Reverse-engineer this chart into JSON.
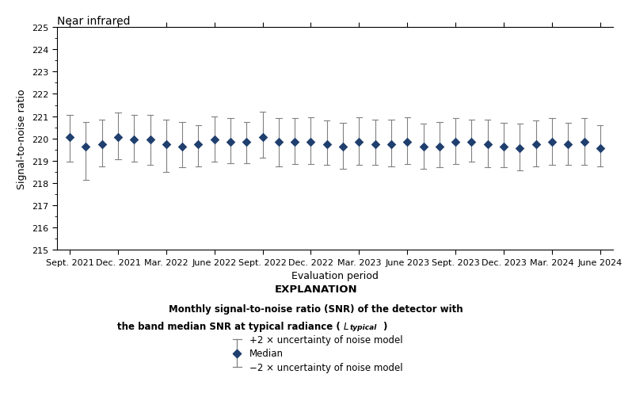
{
  "title": "Near infrared",
  "xlabel": "Evaluation period",
  "ylabel": "Signal-to-noise ratio",
  "ylim": [
    215,
    225
  ],
  "yticks": [
    215,
    216,
    217,
    218,
    219,
    220,
    221,
    222,
    223,
    224,
    225
  ],
  "x_labels": [
    "Sept. 2021",
    "Dec. 2021",
    "Mar. 2022",
    "June 2022",
    "Sept. 2022",
    "Dec. 2022",
    "Mar. 2023",
    "June 2023",
    "Sept. 2023",
    "Dec. 2023",
    "Mar. 2024",
    "June 2024"
  ],
  "medians": [
    220.05,
    219.65,
    219.75,
    220.05,
    219.95,
    219.95,
    219.75,
    219.65,
    219.75,
    219.95,
    219.85,
    219.85,
    220.05,
    219.85,
    219.85,
    219.85,
    219.75,
    219.65,
    219.85,
    219.75,
    219.75,
    219.85,
    219.65,
    219.65,
    219.85,
    219.85,
    219.75,
    219.65,
    219.55,
    219.75,
    219.85,
    219.75,
    219.85,
    219.55
  ],
  "upper_errors": [
    1.0,
    1.1,
    1.1,
    1.1,
    1.1,
    1.1,
    1.1,
    1.1,
    0.85,
    1.05,
    1.05,
    0.9,
    1.15,
    1.05,
    1.05,
    1.1,
    1.05,
    1.05,
    1.1,
    1.1,
    1.1,
    1.1,
    1.0,
    1.1,
    1.05,
    1.0,
    1.1,
    1.05,
    1.1,
    1.05,
    1.05,
    0.95,
    1.05,
    1.05
  ],
  "lower_errors": [
    1.1,
    1.5,
    1.0,
    1.0,
    1.0,
    1.15,
    1.25,
    0.95,
    1.0,
    1.0,
    0.95,
    0.95,
    0.9,
    1.1,
    1.0,
    1.0,
    0.95,
    1.0,
    1.05,
    0.95,
    1.0,
    1.0,
    1.0,
    0.95,
    1.0,
    0.9,
    1.05,
    0.95,
    1.0,
    1.0,
    1.05,
    0.95,
    1.05,
    0.8
  ],
  "marker_color": "#1f3f6e",
  "error_color": "#808080",
  "background_color": "#ffffff",
  "explanation_title": "EXPLANATION",
  "legend_upper": "+2 × uncertainty of noise model",
  "legend_median": "Median",
  "legend_lower": "−2 × uncertainty of noise model"
}
